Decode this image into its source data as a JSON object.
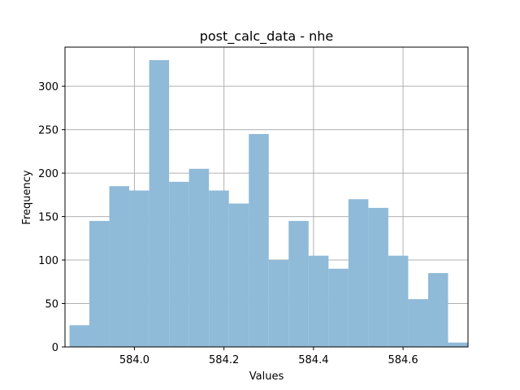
{
  "chart_data": {
    "type": "bar",
    "title": "post_calc_data - nhe",
    "xlabel": "Values",
    "ylabel": "Frequency",
    "xlim": [
      583.845,
      584.745
    ],
    "ylim": [
      0,
      345
    ],
    "xticks": [
      "584.0",
      "584.2",
      "584.4",
      "584.6"
    ],
    "xtick_values": [
      584.0,
      584.2,
      584.4,
      584.6
    ],
    "yticks": [
      "0",
      "50",
      "100",
      "150",
      "200",
      "250",
      "300"
    ],
    "ytick_values": [
      0,
      50,
      100,
      150,
      200,
      250,
      300
    ],
    "bin_edges": [
      583.855,
      583.8995,
      583.944,
      583.9885,
      584.033,
      584.0775,
      584.122,
      584.1665,
      584.211,
      584.2555,
      584.3,
      584.3445,
      584.389,
      584.4335,
      584.478,
      584.5225,
      584.567,
      584.6115,
      584.656,
      584.7005,
      584.745
    ],
    "counts": [
      25,
      145,
      185,
      180,
      330,
      190,
      205,
      180,
      165,
      245,
      100,
      145,
      105,
      90,
      170,
      160,
      105,
      55,
      85,
      5
    ],
    "grid": true,
    "bar_color": "#8fbad8"
  }
}
